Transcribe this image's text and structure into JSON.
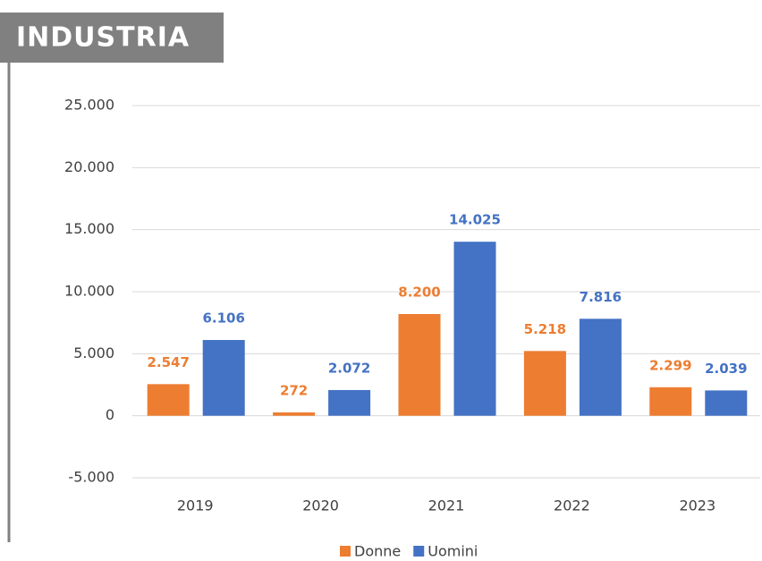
{
  "chart_data": {
    "type": "bar",
    "title": "INDUSTRIA",
    "categories": [
      "2019",
      "2020",
      "2021",
      "2022",
      "2023"
    ],
    "series": [
      {
        "name": "Donne",
        "color": "#ED7D31",
        "values": [
          2547,
          272,
          8200,
          5218,
          2299
        ],
        "value_labels": [
          "2.547",
          "272",
          "8.200",
          "5.218",
          "2.299"
        ]
      },
      {
        "name": "Uomini",
        "color": "#4472C4",
        "values": [
          6106,
          2072,
          14025,
          7816,
          2039
        ],
        "value_labels": [
          "6.106",
          "2.072",
          "14.025",
          "7.816",
          "2.039"
        ]
      }
    ],
    "ylim": [
      -5000,
      25000
    ],
    "yticks": [
      {
        "value": -5000,
        "label": "-5.000"
      },
      0,
      {
        "value": 5000,
        "label": "5.000"
      },
      {
        "value": 10000,
        "label": "10.000"
      },
      {
        "value": 15000,
        "label": "15.000"
      },
      {
        "value": 20000,
        "label": "20.000"
      },
      {
        "value": 25000,
        "label": "25.000"
      }
    ],
    "grid": true,
    "legend": "bottom"
  }
}
